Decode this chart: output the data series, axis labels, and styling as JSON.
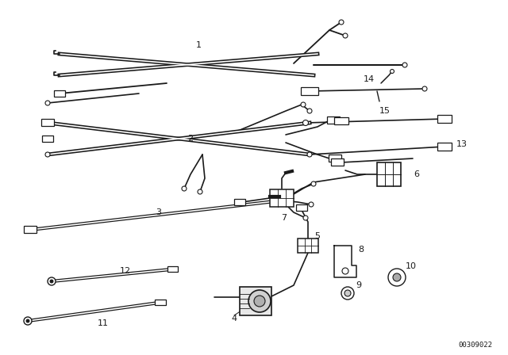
{
  "bg_color": "#ffffff",
  "lc": "#1a1a1a",
  "diagram_code": "00309022",
  "figsize": [
    6.4,
    4.48
  ],
  "dpi": 100
}
